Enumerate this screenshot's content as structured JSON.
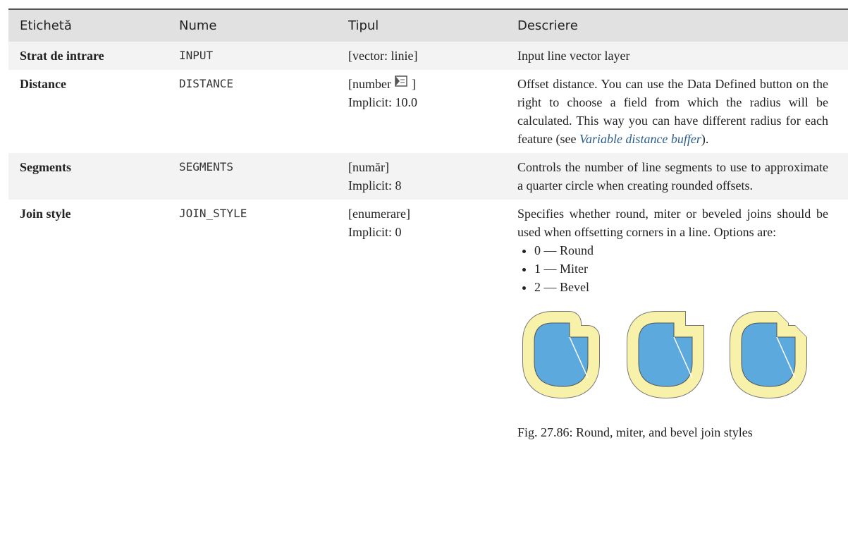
{
  "table": {
    "header": [
      "Etichetă",
      "Nume",
      "Tipul",
      "Descriere"
    ],
    "rows": [
      {
        "label": "Strat de intrare",
        "name": "INPUT",
        "type": "[vector: linie]",
        "description": "Input line vector layer"
      },
      {
        "label": "Distance",
        "name": "DISTANCE",
        "type_open": "[number",
        "type_close": "]",
        "default": "Implicit: 10.0",
        "description": "Offset distance.  You can use the Data Defined button on the right to choose a field from which the radius will be calculated. This way you can have different radius for each feature (see",
        "link": "Variable distance buffer",
        "description_end": ")."
      },
      {
        "label": "Segments",
        "name": "SEGMENTS",
        "type": "[număr]",
        "default": "Implicit: 8",
        "description": "Controls the number of line segments to use to approximate a quarter circle when creating rounded offsets."
      },
      {
        "label": "Join style",
        "name": "JOIN_STYLE",
        "type": "[enumerare]",
        "default": "Implicit: 0",
        "description": "Specifies whether round, miter or beveled joins should be used when offsetting corners in a line. Options are:",
        "options": [
          "0 — Round",
          "1 — Miter",
          "2 — Bevel"
        ],
        "caption": "Fig. 27.86: Round, miter, and bevel join styles"
      }
    ]
  }
}
